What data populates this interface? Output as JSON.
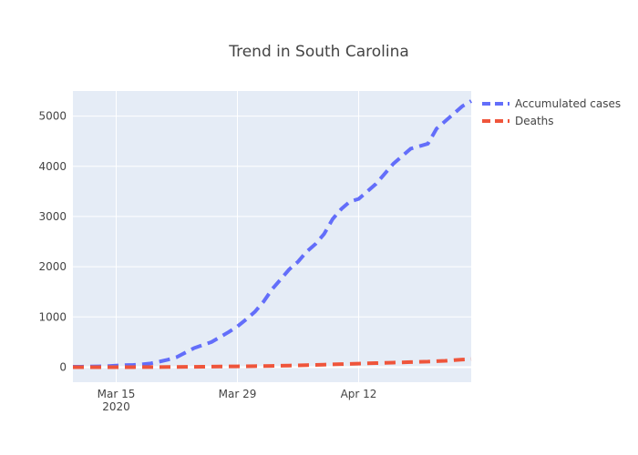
{
  "chart_data": {
    "type": "line",
    "title": "Trend in South Carolina",
    "xlabel": "",
    "ylabel": "",
    "x": [
      "2020-03-10",
      "2020-03-11",
      "2020-03-12",
      "2020-03-13",
      "2020-03-14",
      "2020-03-15",
      "2020-03-16",
      "2020-03-17",
      "2020-03-18",
      "2020-03-19",
      "2020-03-20",
      "2020-03-21",
      "2020-03-22",
      "2020-03-23",
      "2020-03-24",
      "2020-03-25",
      "2020-03-26",
      "2020-03-27",
      "2020-03-28",
      "2020-03-29",
      "2020-03-30",
      "2020-03-31",
      "2020-04-01",
      "2020-04-02",
      "2020-04-03",
      "2020-04-04",
      "2020-04-05",
      "2020-04-06",
      "2020-04-07",
      "2020-04-08",
      "2020-04-09",
      "2020-04-10",
      "2020-04-11",
      "2020-04-12",
      "2020-04-13",
      "2020-04-14",
      "2020-04-15",
      "2020-04-16",
      "2020-04-17",
      "2020-04-18",
      "2020-04-19",
      "2020-04-20",
      "2020-04-21",
      "2020-04-22",
      "2020-04-23",
      "2020-04-24",
      "2020-04-25"
    ],
    "series": [
      {
        "name": "Accumulated cases",
        "color": "#636efa",
        "values": [
          7,
          9,
          12,
          16,
          20,
          30,
          40,
          45,
          55,
          75,
          110,
          150,
          200,
          290,
          380,
          440,
          500,
          600,
          700,
          810,
          950,
          1100,
          1300,
          1550,
          1750,
          1950,
          2100,
          2300,
          2450,
          2650,
          2950,
          3150,
          3300,
          3350,
          3500,
          3650,
          3850,
          4050,
          4200,
          4350,
          4400,
          4450,
          4750,
          4900,
          5050,
          5200,
          5300
        ]
      },
      {
        "name": "Deaths",
        "color": "#ef553b",
        "values": [
          0,
          0,
          0,
          0,
          0,
          0,
          0,
          0,
          1,
          1,
          2,
          3,
          4,
          5,
          6,
          8,
          10,
          12,
          14,
          16,
          18,
          20,
          22,
          25,
          28,
          31,
          35,
          40,
          45,
          50,
          55,
          60,
          65,
          70,
          75,
          80,
          85,
          90,
          95,
          100,
          105,
          110,
          120,
          125,
          140,
          150,
          160
        ]
      }
    ],
    "x_ticks": [
      {
        "date": "2020-03-15",
        "label": "Mar 15",
        "sublabel": "2020"
      },
      {
        "date": "2020-03-29",
        "label": "Mar 29",
        "sublabel": ""
      },
      {
        "date": "2020-04-12",
        "label": "Apr 12",
        "sublabel": ""
      }
    ],
    "xlim": [
      "2020-03-10",
      "2020-04-25"
    ],
    "y_ticks": [
      0,
      1000,
      2000,
      3000,
      4000,
      5000
    ],
    "ylim": [
      -300,
      5500
    ],
    "grid": true,
    "legend": "top-right",
    "plot_background": "#e5ecf6",
    "line_style": "dashed"
  }
}
